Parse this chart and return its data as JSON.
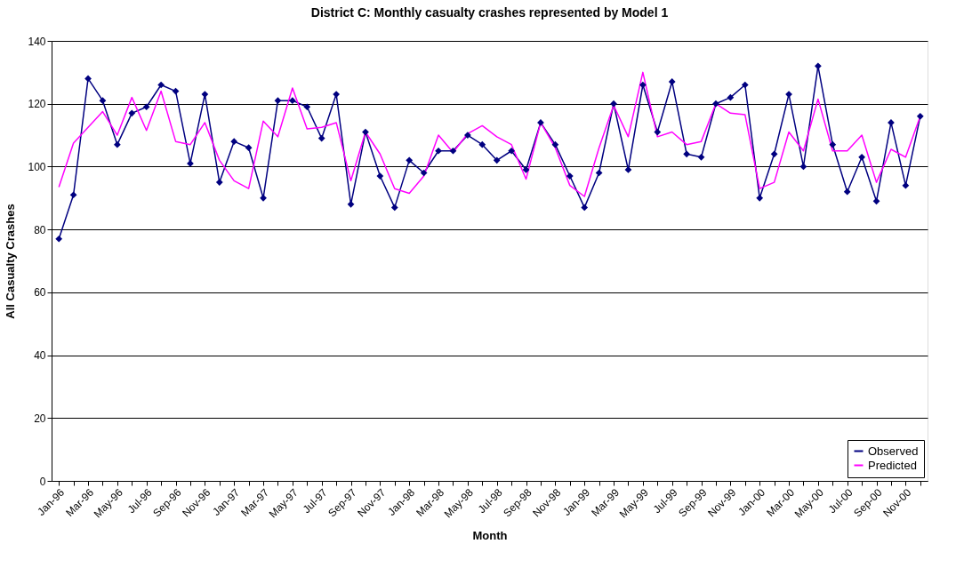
{
  "chart_data": {
    "type": "line",
    "title": "District C: Monthly casualty crashes represented by Model 1",
    "xlabel": "Month",
    "ylabel": "All Casualty Crashes",
    "categories": [
      "Jan-96",
      null,
      "Mar-96",
      null,
      "May-96",
      null,
      "Jul-96",
      null,
      "Sep-96",
      null,
      "Nov-96",
      null,
      "Jan-97",
      null,
      "Mar-97",
      null,
      "May-97",
      null,
      "Jul-97",
      null,
      "Sep-97",
      null,
      "Nov-97",
      null,
      "Jan-98",
      null,
      "Mar-98",
      null,
      "May-98",
      null,
      "Jul-98",
      null,
      "Sep-98",
      null,
      "Nov-98",
      null,
      "Jan-99",
      null,
      "Mar-99",
      null,
      "May-99",
      null,
      "Jul-99",
      null,
      "Sep-99",
      null,
      "Nov-99",
      null,
      "Jan-00",
      null,
      "Mar-00",
      null,
      "May-00",
      null,
      "Jul-00",
      null,
      "Sep-00",
      null,
      "Nov-00",
      null
    ],
    "series": [
      {
        "name": "Observed",
        "color": "#000080",
        "marker": "diamond",
        "values": [
          77,
          91,
          128,
          121,
          107,
          117,
          119,
          126,
          124,
          101,
          123,
          95,
          108,
          106,
          90,
          121,
          121,
          119,
          109,
          123,
          88,
          111,
          97,
          87,
          102,
          98,
          105,
          105,
          110,
          107,
          102,
          105,
          99,
          114,
          107,
          97,
          87,
          98,
          120,
          99,
          126,
          111,
          127,
          104,
          103,
          120,
          122,
          126,
          90,
          104,
          123,
          100,
          132,
          107,
          92,
          103,
          89,
          114,
          94,
          116
        ]
      },
      {
        "name": "Predicted",
        "color": "#ff00ff",
        "marker": "none",
        "values": [
          93.5,
          107.5,
          112.5,
          117.5,
          110,
          122,
          111.5,
          124,
          108,
          107,
          114,
          102,
          95.5,
          93,
          114.5,
          109.5,
          125,
          112,
          112.5,
          114,
          95.5,
          111,
          104,
          93,
          91.5,
          97,
          110,
          104.5,
          110.5,
          113,
          109.5,
          107,
          96,
          114,
          106,
          94,
          90.5,
          106,
          119.5,
          109.5,
          130,
          109.5,
          111,
          107,
          108,
          120,
          117,
          116.5,
          93,
          95,
          111,
          105,
          121.5,
          105,
          105,
          110,
          95,
          105.5,
          103,
          116
        ]
      }
    ],
    "ylim": [
      0,
      140
    ],
    "yticks": [
      0,
      20,
      40,
      60,
      80,
      100,
      120,
      140
    ],
    "grid": "y",
    "legend": "bottom right"
  }
}
